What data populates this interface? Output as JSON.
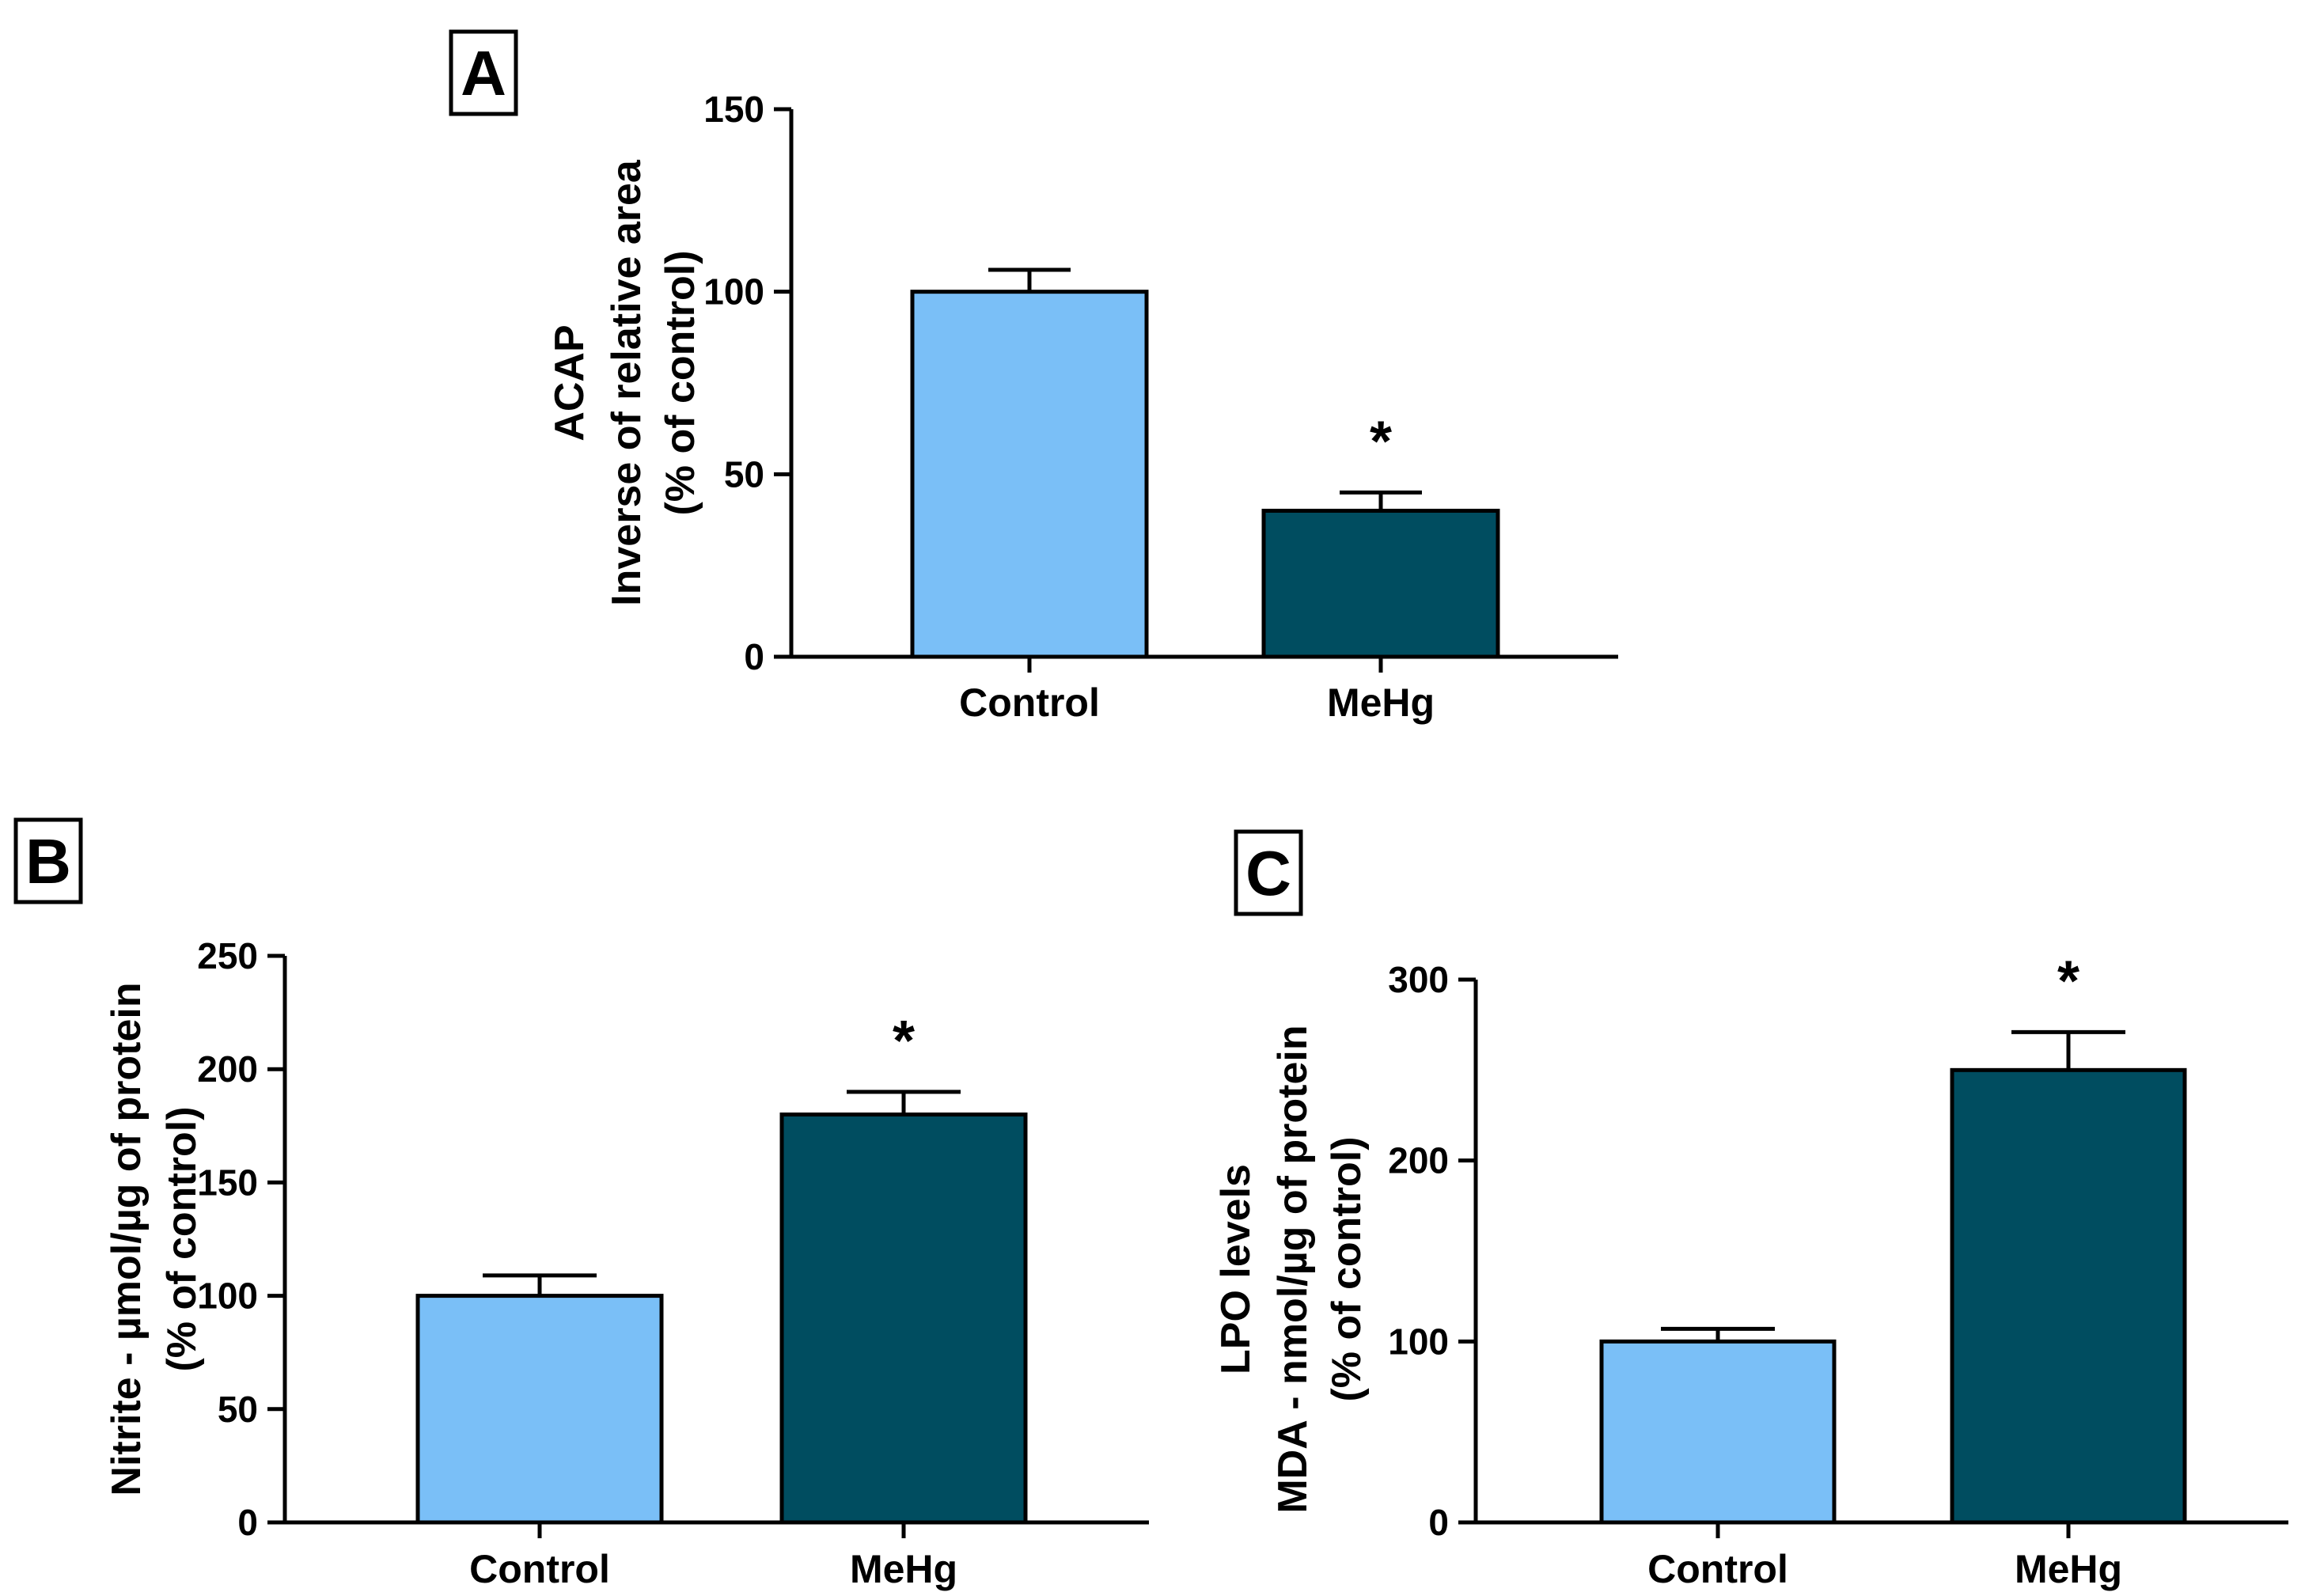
{
  "chart_data": [
    {
      "panel": "A",
      "type": "bar",
      "categories": [
        "Control",
        "MeHg"
      ],
      "values": [
        100,
        40
      ],
      "errors": [
        6,
        5
      ],
      "significance": [
        "",
        "*"
      ],
      "ylabel_lines": [
        "ACAP",
        "Inverse of relative area",
        "(% of control)"
      ],
      "xlabel": "",
      "ylim": [
        0,
        150
      ],
      "yticks": [
        0,
        50,
        100,
        150
      ],
      "colors": [
        "#7abff7",
        "#004d60"
      ],
      "grid": false
    },
    {
      "panel": "B",
      "type": "bar",
      "categories": [
        "Control",
        "MeHg"
      ],
      "values": [
        100,
        180
      ],
      "errors": [
        9,
        10
      ],
      "significance": [
        "",
        "*"
      ],
      "ylabel_lines": [
        "Nitrite - µmol/µg of protein",
        "(% of control)"
      ],
      "xlabel": "",
      "ylim": [
        0,
        250
      ],
      "yticks": [
        0,
        50,
        100,
        150,
        200,
        250
      ],
      "colors": [
        "#7abff7",
        "#004d60"
      ],
      "grid": false
    },
    {
      "panel": "C",
      "type": "bar",
      "categories": [
        "Control",
        "MeHg"
      ],
      "values": [
        100,
        250
      ],
      "errors": [
        7,
        21
      ],
      "significance": [
        "",
        "*"
      ],
      "ylabel_lines": [
        "LPO levels",
        "MDA - nmol/µg of protein",
        "(% of control)"
      ],
      "xlabel": "",
      "ylim": [
        0,
        300
      ],
      "yticks": [
        0,
        100,
        200,
        300
      ],
      "colors": [
        "#7abff7",
        "#004d60"
      ],
      "grid": false
    }
  ]
}
